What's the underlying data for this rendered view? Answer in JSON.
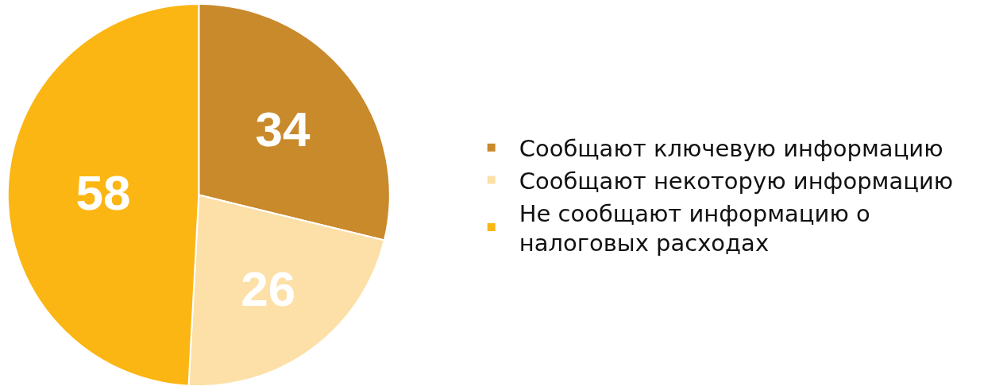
{
  "chart_data": {
    "type": "pie",
    "categories": [
      "Сообщают ключевую информацию",
      "Сообщают некоторую информацию",
      "Не сообщают информацию о налоговых расходах"
    ],
    "values": [
      34,
      26,
      58
    ],
    "colors": [
      "#c98a2b",
      "#fce0a8",
      "#fbb614"
    ],
    "data_labels": true,
    "legend": "right"
  }
}
